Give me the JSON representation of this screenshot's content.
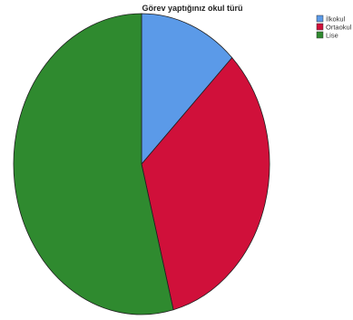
{
  "chart_data": {
    "type": "pie",
    "title": "Görev yaptığınız okul türü",
    "categories": [
      "İlkokul",
      "Ortaokul",
      "Lise"
    ],
    "values": [
      12.5,
      33.5,
      54.0
    ],
    "unit": "percent",
    "colors": [
      "#5b9ae8",
      "#d0103a",
      "#2f8a2f"
    ],
    "start_angle": "top, clockwise",
    "legend_position": "top-right",
    "border_color": "#1f1f1f"
  }
}
